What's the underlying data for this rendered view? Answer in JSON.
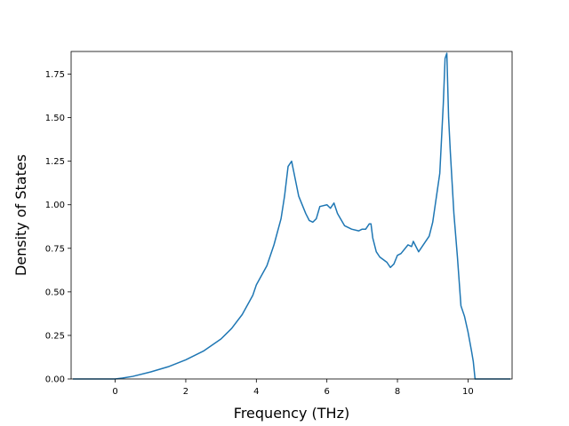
{
  "chart_data": {
    "type": "line",
    "xlabel": "Frequency (THz)",
    "ylabel": "Density of States",
    "xlim": [
      -1.25,
      11.25
    ],
    "ylim": [
      0.0,
      1.88
    ],
    "grid": false,
    "x_ticks": [
      0,
      2,
      4,
      6,
      8,
      10
    ],
    "x_tick_labels": [
      "0",
      "2",
      "4",
      "6",
      "8",
      "10"
    ],
    "y_ticks": [
      0.0,
      0.25,
      0.5,
      0.75,
      1.0,
      1.25,
      1.5,
      1.75
    ],
    "y_tick_labels": [
      "0.00",
      "0.25",
      "0.50",
      "0.75",
      "1.00",
      "1.25",
      "1.50",
      "1.75"
    ],
    "series": [
      {
        "color": "#1f77b4",
        "x": [
          -1.2,
          -0.6,
          0.0,
          0.2,
          0.5,
          1.0,
          1.5,
          2.0,
          2.5,
          3.0,
          3.3,
          3.6,
          3.9,
          4.0,
          4.3,
          4.5,
          4.7,
          4.8,
          4.9,
          5.0,
          5.2,
          5.4,
          5.5,
          5.6,
          5.7,
          5.8,
          6.0,
          6.1,
          6.2,
          6.3,
          6.5,
          6.7,
          6.9,
          7.0,
          7.1,
          7.2,
          7.25,
          7.3,
          7.4,
          7.5,
          7.7,
          7.8,
          7.9,
          8.0,
          8.1,
          8.3,
          8.4,
          8.45,
          8.5,
          8.6,
          8.7,
          8.8,
          8.9,
          9.0,
          9.2,
          9.3,
          9.35,
          9.4,
          9.45,
          9.5,
          9.6,
          9.7,
          9.8,
          9.9,
          10.0,
          10.1,
          10.15,
          10.2,
          10.6,
          11.2
        ],
        "y": [
          0.0,
          0.0,
          0.0,
          0.005,
          0.015,
          0.04,
          0.07,
          0.11,
          0.16,
          0.23,
          0.29,
          0.37,
          0.48,
          0.54,
          0.65,
          0.77,
          0.92,
          1.05,
          1.22,
          1.25,
          1.05,
          0.95,
          0.91,
          0.9,
          0.92,
          0.99,
          1.0,
          0.98,
          1.01,
          0.95,
          0.88,
          0.86,
          0.85,
          0.86,
          0.86,
          0.89,
          0.89,
          0.81,
          0.73,
          0.7,
          0.67,
          0.64,
          0.66,
          0.71,
          0.72,
          0.77,
          0.76,
          0.79,
          0.77,
          0.73,
          0.76,
          0.79,
          0.82,
          0.9,
          1.18,
          1.58,
          1.84,
          1.87,
          1.5,
          1.3,
          0.95,
          0.7,
          0.42,
          0.36,
          0.27,
          0.16,
          0.1,
          0.0,
          0.0,
          0.0
        ]
      }
    ]
  }
}
